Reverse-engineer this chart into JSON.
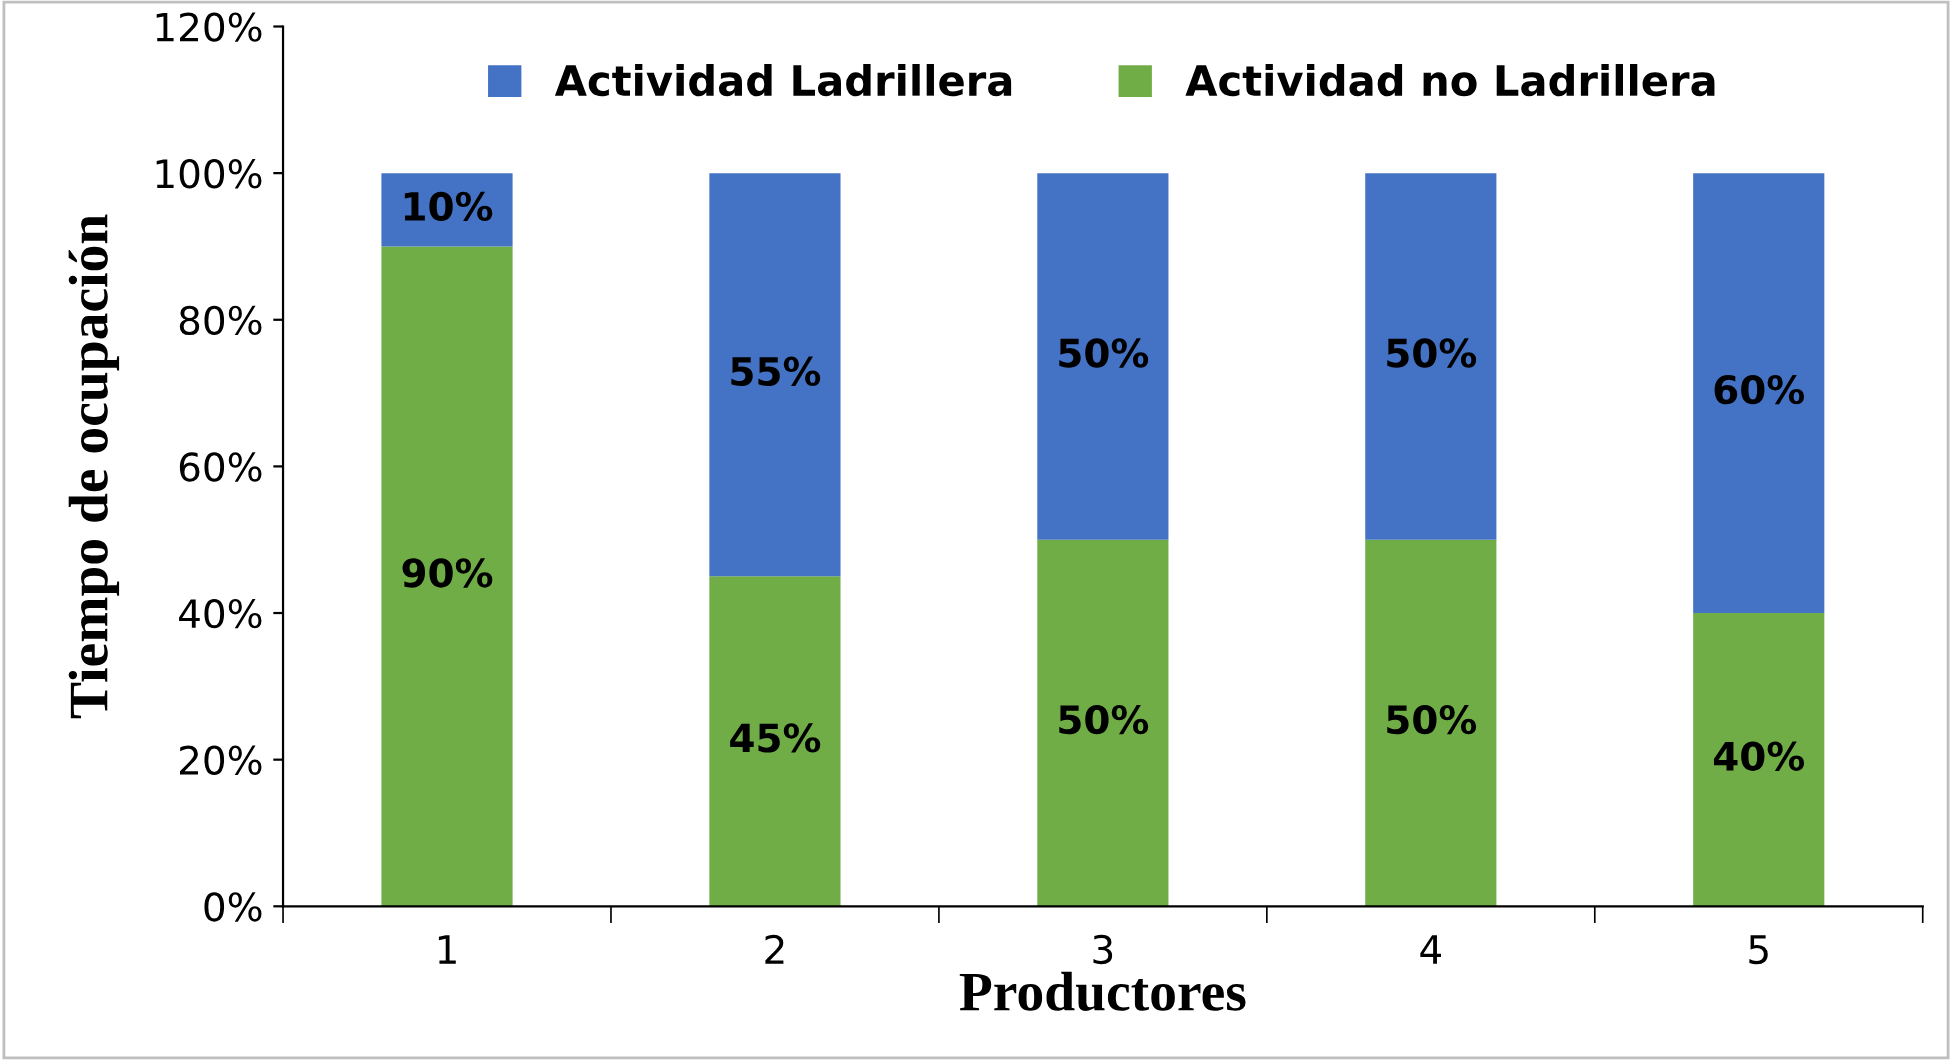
{
  "chart_data": {
    "type": "bar",
    "stacked": true,
    "xlabel": "Productores",
    "ylabel": "Tiempo de ocupación",
    "categories": [
      "1",
      "2",
      "3",
      "4",
      "5"
    ],
    "series": [
      {
        "name": "Actividad no Ladrillera",
        "color": "#70ad47",
        "values": [
          90,
          45,
          50,
          50,
          40
        ],
        "value_labels": [
          "90%",
          "45%",
          "50%",
          "50%",
          "40%"
        ]
      },
      {
        "name": "Actividad Ladrillera",
        "color": "#4472c4",
        "values": [
          10,
          55,
          50,
          50,
          60
        ],
        "value_labels": [
          "10%",
          "55%",
          "50%",
          "50%",
          "60%"
        ]
      }
    ],
    "ylim": [
      0,
      120
    ],
    "yticks": [
      {
        "value": 0,
        "label": "0%"
      },
      {
        "value": 20,
        "label": "20%"
      },
      {
        "value": 40,
        "label": "40%"
      },
      {
        "value": 60,
        "label": "60%"
      },
      {
        "value": 80,
        "label": "80%"
      },
      {
        "value": 100,
        "label": "100%"
      },
      {
        "value": 120,
        "label": "120%"
      }
    ],
    "grid": false,
    "legend": "top"
  }
}
